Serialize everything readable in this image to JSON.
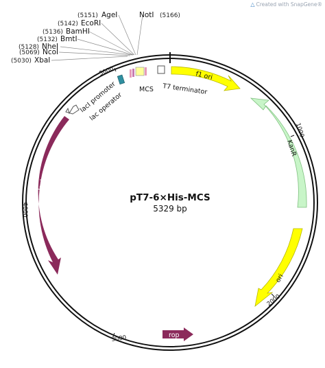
{
  "credit": "Created with SnapGene®",
  "plasmid": {
    "name": "pT7-6×His-MCS",
    "length_label": "5329 bp"
  },
  "sites": [
    {
      "name": "AgeI",
      "pos": "(5151)"
    },
    {
      "name": "EcoRI",
      "pos": "(5142)"
    },
    {
      "name": "BamHI",
      "pos": "(5136)"
    },
    {
      "name": "BmtI",
      "pos": "(5132)"
    },
    {
      "name": "NheI",
      "pos": "(5128)"
    },
    {
      "name": "NcoI",
      "pos": "(5069)"
    },
    {
      "name": "XbaI",
      "pos": "(5030)"
    }
  ],
  "site_right": {
    "name": "NotI",
    "pos": "(5166)"
  },
  "features": {
    "f1_ori": "f1 ori",
    "kanr": "KanR",
    "ori": "ori",
    "rop": "rop",
    "laci": "lacI",
    "laci_promoter": "lacI promoter",
    "lac_operator": "lac operator",
    "mcs": "MCS",
    "t7_terminator": "T7 terminator"
  },
  "ticks": {
    "t1000": "1000",
    "t2000": "2000",
    "t3000": "3000",
    "t4000": "4000",
    "t5000": "5000"
  },
  "colors": {
    "yellow": "#ffff00",
    "green": "#c8f5c8",
    "maroon": "#8b2a5b",
    "teal": "#2f8fa0",
    "pink": "#e69ab8",
    "backbone": "#111111"
  }
}
